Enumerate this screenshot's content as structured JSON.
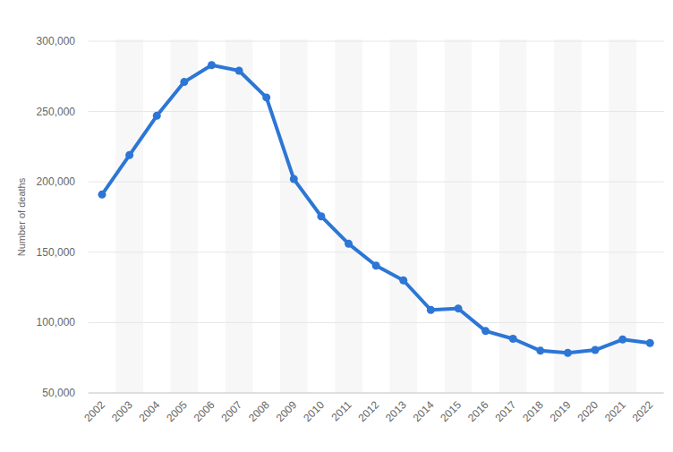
{
  "chart_data": {
    "type": "line",
    "y_label": "Number of deaths",
    "categories": [
      "2002",
      "2003",
      "2004",
      "2005",
      "2006",
      "2007",
      "2008",
      "2009",
      "2010",
      "2011",
      "2012",
      "2013",
      "2014",
      "2015",
      "2016",
      "2017",
      "2018",
      "2019",
      "2020",
      "2021",
      "2022"
    ],
    "values": [
      191000,
      219000,
      247000,
      271000,
      283000,
      279000,
      260000,
      202000,
      175500,
      156000,
      140500,
      130000,
      109000,
      110000,
      94000,
      88500,
      80000,
      78500,
      80500,
      88000,
      85500
    ],
    "color": "#2c76d6",
    "marker": "circle",
    "ylim": [
      50000,
      300000
    ],
    "yticks": [
      {
        "value": 50000,
        "label": "50,000"
      },
      {
        "value": 100000,
        "label": "100,000"
      },
      {
        "value": 150000,
        "label": "150,000"
      },
      {
        "value": 200000,
        "label": "200,000"
      },
      {
        "value": 250000,
        "label": "250,000"
      },
      {
        "value": 300000,
        "label": "300,000"
      }
    ],
    "grid": true
  }
}
